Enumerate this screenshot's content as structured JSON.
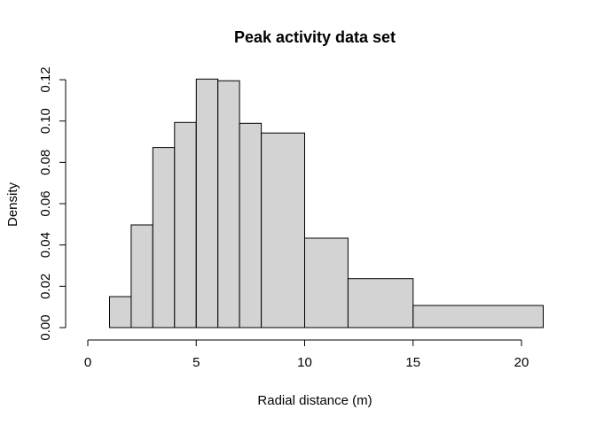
{
  "chart_data": {
    "type": "bar",
    "title": "Peak activity data set",
    "xlabel": "Radial distance (m)",
    "ylabel": "Density",
    "bins": [
      {
        "x0": 0,
        "x1": 1,
        "density": 0
      },
      {
        "x0": 1,
        "x1": 2,
        "density": 0.015
      },
      {
        "x0": 2,
        "x1": 3,
        "density": 0.0497
      },
      {
        "x0": 3,
        "x1": 4,
        "density": 0.0872
      },
      {
        "x0": 4,
        "x1": 5,
        "density": 0.0993
      },
      {
        "x0": 5,
        "x1": 6,
        "density": 0.1203
      },
      {
        "x0": 6,
        "x1": 7,
        "density": 0.1195
      },
      {
        "x0": 7,
        "x1": 8,
        "density": 0.0989
      },
      {
        "x0": 8,
        "x1": 10,
        "density": 0.0942
      },
      {
        "x0": 10,
        "x1": 12,
        "density": 0.0433
      },
      {
        "x0": 12,
        "x1": 15,
        "density": 0.0237
      },
      {
        "x0": 15,
        "x1": 21,
        "density": 0.0107
      }
    ],
    "xticks": [
      0,
      5,
      10,
      15,
      20
    ],
    "xtick_labels": [
      "0",
      "5",
      "10",
      "15",
      "20"
    ],
    "yticks": [
      0,
      0.02,
      0.04,
      0.06,
      0.08,
      0.1,
      0.12
    ],
    "ytick_labels": [
      "0.00",
      "0.02",
      "0.04",
      "0.06",
      "0.08",
      "0.10",
      "0.12"
    ],
    "xlim": [
      0,
      21
    ],
    "ylim": [
      0,
      0.12
    ],
    "grid": false,
    "bar_fill": "#d3d3d3",
    "bar_stroke": "#000000"
  }
}
